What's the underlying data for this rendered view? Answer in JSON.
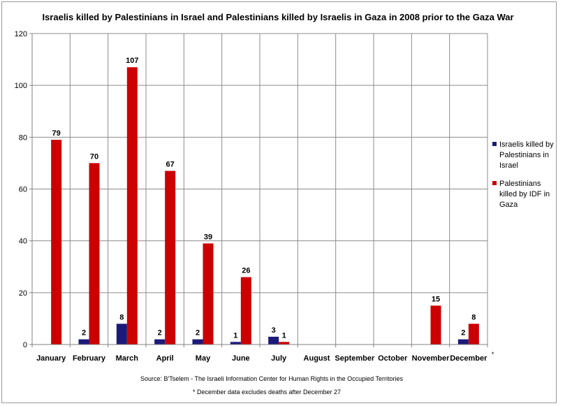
{
  "chart_data": {
    "type": "bar",
    "title": "Israelis killed by Palestinians in Israel and Palestinians killed by Israelis in Gaza in 2008 prior to the Gaza War",
    "categories": [
      "January",
      "February",
      "March",
      "April",
      "May",
      "June",
      "July",
      "August",
      "September",
      "October",
      "November",
      "December"
    ],
    "category_suffix": {
      "11": "*"
    },
    "series": [
      {
        "name": "Israelis killed by Palestinians in Israel",
        "legend_lines": [
          "Israelis killed by",
          "Palestinians in",
          "Israel"
        ],
        "color": "#1a1a7a",
        "values": [
          0,
          2,
          8,
          2,
          2,
          1,
          3,
          0,
          0,
          0,
          0,
          2
        ],
        "labels": [
          null,
          "2",
          "8",
          "2",
          "2",
          "1",
          "3",
          null,
          null,
          null,
          null,
          "2"
        ]
      },
      {
        "name": "Palestinians killed by IDF in Gaza",
        "legend_lines": [
          "Palestinians",
          "killed by IDF in",
          "Gaza"
        ],
        "color": "#cc0000",
        "values": [
          79,
          70,
          107,
          67,
          39,
          26,
          1,
          0,
          0,
          0,
          15,
          8
        ],
        "labels": [
          "79",
          "70",
          "107",
          "67",
          "39",
          "26",
          "1",
          null,
          null,
          null,
          "15",
          "8"
        ]
      }
    ],
    "ylim": [
      0,
      120
    ],
    "yticks": [
      0,
      20,
      40,
      60,
      80,
      100,
      120
    ],
    "grid": true,
    "legend_position": "right",
    "source": "Source: B'Tselem - The Israeli Information Center for Human Rights in the Occupied Territories",
    "footnote": "* December data excludes deaths  after December 27"
  }
}
